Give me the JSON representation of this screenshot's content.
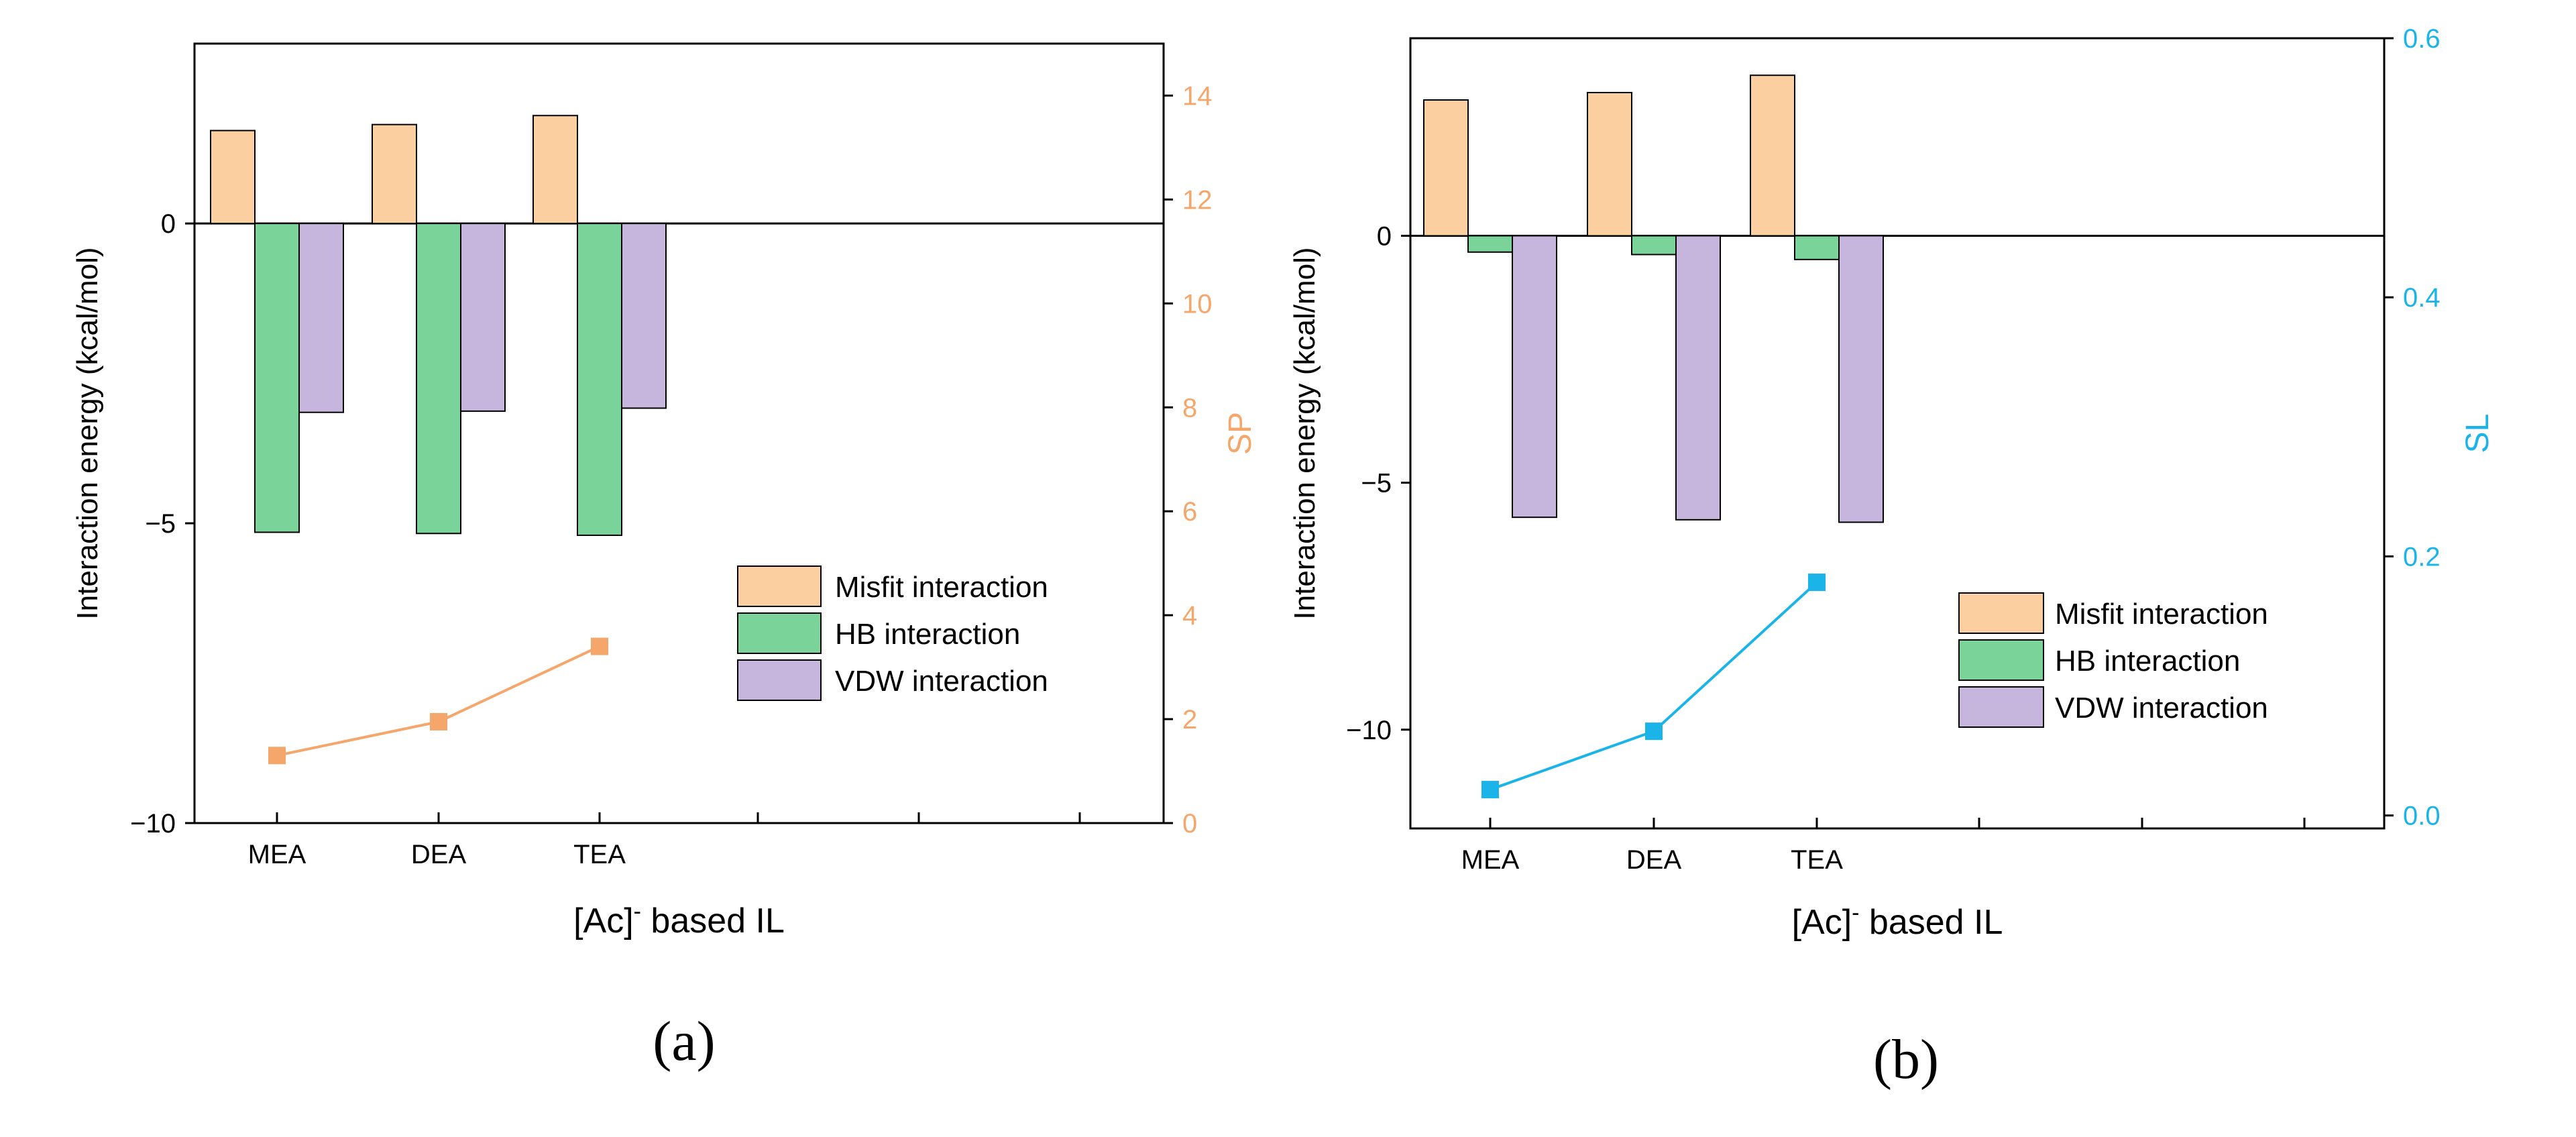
{
  "chart_data": [
    {
      "id": "a",
      "type": "bar",
      "panel_label": "(a)",
      "categories": [
        "MEA",
        "DEA",
        "TEA"
      ],
      "xlabel_main": "[Ac]",
      "xlabel_sup": "-",
      "xlabel_rest": " based IL",
      "ylabel": "Interaction energy (kcal/mol)",
      "ylim": [
        -10,
        3
      ],
      "yticks": [
        0,
        -5,
        -10
      ],
      "y2label": "SP",
      "y2lim": [
        0,
        15
      ],
      "y2ticks": [
        0,
        2,
        4,
        6,
        8,
        10,
        12,
        14
      ],
      "y2color": "#F5A66A",
      "series": [
        {
          "name": "Misfit interaction",
          "color": "#FCCFA0",
          "values": [
            1.55,
            1.65,
            1.8
          ]
        },
        {
          "name": "HB interaction",
          "color": "#7AD49A",
          "values": [
            -5.15,
            -5.17,
            -5.2
          ]
        },
        {
          "name": "VDW interaction",
          "color": "#C6B5DD",
          "values": [
            -3.15,
            -3.13,
            -3.08
          ]
        }
      ],
      "line_series": {
        "name": "SP",
        "color": "#F5A66A",
        "values": [
          1.3,
          1.95,
          3.4
        ]
      },
      "legend_position": "bottom-right"
    },
    {
      "id": "b",
      "type": "bar",
      "panel_label": "(b)",
      "categories": [
        "MEA",
        "DEA",
        "TEA"
      ],
      "xlabel_main": "[Ac]",
      "xlabel_sup": "-",
      "xlabel_rest": " based IL",
      "ylabel": "Interaction energy (kcal/mol)",
      "ylim": [
        -12,
        4
      ],
      "yticks": [
        0,
        -5,
        -10
      ],
      "y2label": "SL",
      "y2lim": [
        -0.01,
        0.6
      ],
      "y2ticks": [
        0.0,
        0.2,
        0.4,
        0.6
      ],
      "y2ticklabels": [
        "0.0",
        "0.2",
        "0.4",
        "0.6"
      ],
      "y2color": "#1AB4E8",
      "series": [
        {
          "name": "Misfit interaction",
          "color": "#FCCFA0",
          "values": [
            2.75,
            2.9,
            3.25
          ]
        },
        {
          "name": "HB interaction",
          "color": "#7AD49A",
          "values": [
            -0.33,
            -0.38,
            -0.48
          ]
        },
        {
          "name": "VDW interaction",
          "color": "#C6B5DD",
          "values": [
            -5.7,
            -5.75,
            -5.8
          ]
        }
      ],
      "line_series": {
        "name": "SL",
        "color": "#1AB4E8",
        "values": [
          0.02,
          0.065,
          0.18
        ]
      },
      "legend_position": "bottom-right"
    }
  ]
}
